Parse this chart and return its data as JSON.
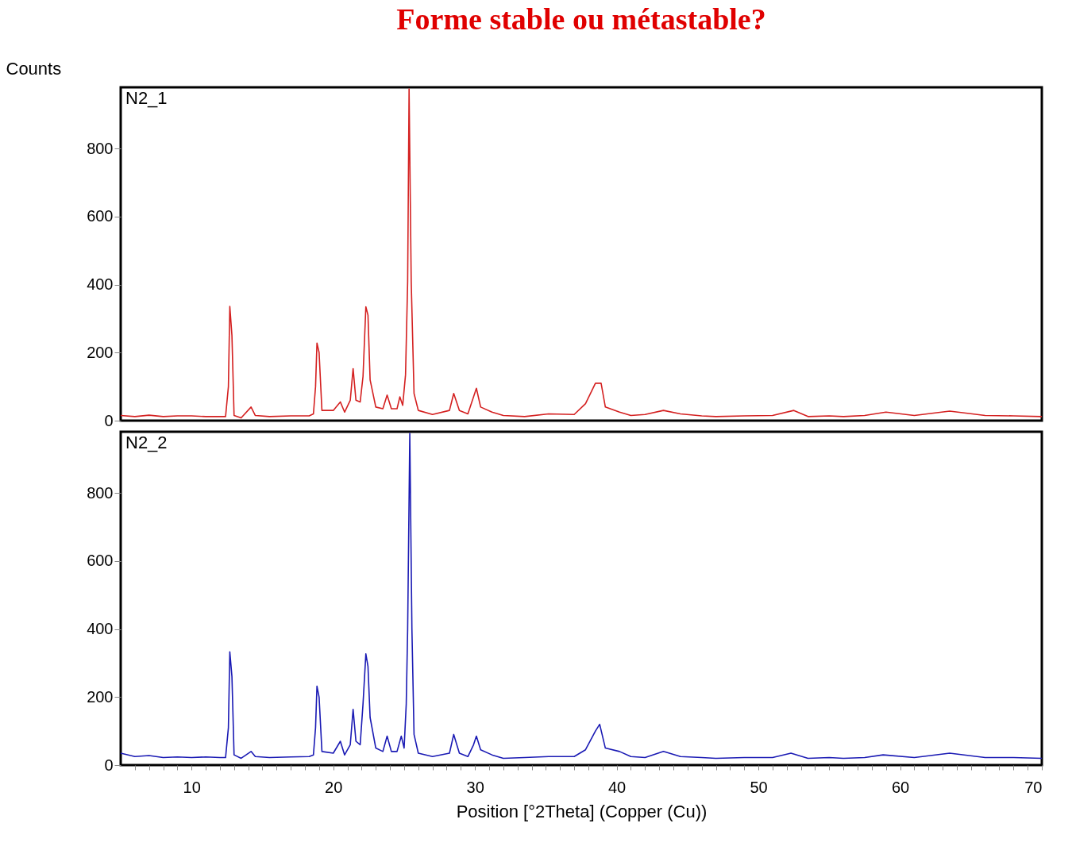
{
  "chart_data": [
    {
      "type": "line",
      "title": "Forme stable ou métastable?",
      "ylabel": "Counts",
      "xlim": [
        5,
        70
      ],
      "ylim": [
        0,
        980
      ],
      "yticks": [
        0,
        200,
        400,
        600,
        800
      ],
      "tick_labels": "y",
      "grid": false,
      "series": [
        {
          "name": "N2_1",
          "color": "#d42020",
          "x": [
            5,
            6,
            7,
            8,
            9,
            10,
            11,
            12,
            12.4,
            12.6,
            12.7,
            12.85,
            13.0,
            13.5,
            14.2,
            14.5,
            15.5,
            17,
            18.3,
            18.6,
            18.75,
            18.85,
            19.0,
            19.2,
            20.0,
            20.5,
            20.8,
            21.2,
            21.4,
            21.6,
            21.9,
            22.1,
            22.3,
            22.45,
            22.6,
            23.0,
            23.5,
            23.8,
            24.1,
            24.5,
            24.7,
            24.9,
            25.1,
            25.25,
            25.35,
            25.5,
            25.7,
            26.0,
            27,
            28.2,
            28.5,
            28.9,
            29.5,
            29.9,
            30.1,
            30.4,
            31.2,
            32,
            33.5,
            35.2,
            37,
            37.8,
            38.5,
            38.9,
            39.2,
            40.2,
            41,
            42,
            43.3,
            44.5,
            46,
            47,
            49,
            51,
            52.5,
            53.5,
            55,
            56,
            57.5,
            59,
            61,
            63.5,
            66,
            68,
            70
          ],
          "values": [
            15,
            12,
            16,
            12,
            14,
            14,
            12,
            12,
            12,
            100,
            336,
            250,
            15,
            8,
            40,
            15,
            12,
            14,
            14,
            20,
            100,
            228,
            200,
            30,
            30,
            55,
            25,
            60,
            153,
            60,
            55,
            130,
            335,
            310,
            120,
            40,
            35,
            75,
            35,
            35,
            70,
            45,
            135,
            410,
            975,
            410,
            80,
            30,
            18,
            30,
            80,
            30,
            20,
            70,
            95,
            40,
            25,
            15,
            12,
            20,
            18,
            50,
            110,
            110,
            40,
            25,
            15,
            18,
            30,
            20,
            14,
            12,
            14,
            15,
            30,
            12,
            14,
            12,
            15,
            25,
            15,
            28,
            15,
            14,
            12
          ]
        }
      ]
    },
    {
      "type": "line",
      "xlabel": "Position [°2Theta] (Copper (Cu))",
      "xlim": [
        5,
        70
      ],
      "ylim": [
        0,
        980
      ],
      "yticks": [
        0,
        200,
        400,
        600,
        800
      ],
      "grid": false,
      "xticks": [
        {
          "value": 6,
          "label": null
        },
        {
          "value": 7,
          "label": null
        },
        {
          "value": 8,
          "label": null
        },
        {
          "value": 9,
          "label": null
        },
        10,
        {
          "value": 11,
          "label": null
        },
        {
          "value": 12,
          "label": null
        },
        {
          "value": 13,
          "label": null
        },
        {
          "value": 14,
          "label": null
        },
        {
          "value": 15,
          "label": null
        },
        {
          "value": 16,
          "label": null
        },
        {
          "value": 17,
          "label": null
        },
        {
          "value": 18,
          "label": null
        },
        {
          "value": 19,
          "label": null
        },
        20,
        {
          "value": 21,
          "label": null
        },
        {
          "value": 22,
          "label": null
        },
        {
          "value": 23,
          "label": null
        },
        {
          "value": 24,
          "label": null
        },
        {
          "value": 25,
          "label": null
        },
        {
          "value": 26,
          "label": null
        },
        {
          "value": 27,
          "label": null
        },
        {
          "value": 28,
          "label": null
        },
        {
          "value": 29,
          "label": null
        },
        30,
        {
          "value": 31,
          "label": null
        },
        {
          "value": 32,
          "label": null
        },
        {
          "value": 33,
          "label": null
        },
        {
          "value": 34,
          "label": null
        },
        {
          "value": 35,
          "label": null
        },
        {
          "value": 36,
          "label": null
        },
        {
          "value": 37,
          "label": null
        },
        {
          "value": 38,
          "label": null
        },
        {
          "value": 39,
          "label": null
        },
        40,
        {
          "value": 41,
          "label": null
        },
        {
          "value": 42,
          "label": null
        },
        {
          "value": 43,
          "label": null
        },
        {
          "value": 44,
          "label": null
        },
        {
          "value": 45,
          "label": null
        },
        {
          "value": 46,
          "label": null
        },
        {
          "value": 47,
          "label": null
        },
        {
          "value": 48,
          "label": null
        },
        {
          "value": 49,
          "label": null
        },
        50,
        {
          "value": 51,
          "label": null
        },
        {
          "value": 52,
          "label": null
        },
        {
          "value": 53,
          "label": null
        },
        {
          "value": 54,
          "label": null
        },
        {
          "value": 55,
          "label": null
        },
        {
          "value": 56,
          "label": null
        },
        {
          "value": 57,
          "label": null
        },
        {
          "value": 58,
          "label": null
        },
        {
          "value": 59,
          "label": null
        },
        60,
        {
          "value": 61,
          "label": null
        },
        {
          "value": 62,
          "label": null
        },
        {
          "value": 63,
          "label": null
        },
        {
          "value": 64,
          "label": null
        },
        {
          "value": 65,
          "label": null
        },
        {
          "value": 66,
          "label": null
        },
        {
          "value": 67,
          "label": null
        },
        {
          "value": 68,
          "label": null
        },
        {
          "value": 69,
          "label": null
        },
        70
      ],
      "series": [
        {
          "name": "N2_2",
          "color": "#1a1ab4",
          "x": [
            5,
            6,
            7,
            8,
            9,
            10,
            11,
            12,
            12.4,
            12.6,
            12.7,
            12.85,
            13.0,
            13.5,
            14.2,
            14.5,
            15.5,
            17,
            18.3,
            18.6,
            18.75,
            18.85,
            19.0,
            19.2,
            20.0,
            20.5,
            20.8,
            21.2,
            21.4,
            21.6,
            21.9,
            22.1,
            22.3,
            22.45,
            22.6,
            23.0,
            23.5,
            23.8,
            24.1,
            24.5,
            24.8,
            25.0,
            25.15,
            25.25,
            25.4,
            25.55,
            25.7,
            26.0,
            27,
            28.2,
            28.5,
            28.9,
            29.5,
            29.9,
            30.1,
            30.4,
            31.2,
            32,
            33.5,
            35.2,
            37,
            37.8,
            38.5,
            38.8,
            39.2,
            40.2,
            41,
            42,
            43.3,
            44.5,
            46,
            47,
            49,
            51,
            52.3,
            53.5,
            55,
            56,
            57.5,
            58.8,
            61,
            63.5,
            66,
            68,
            70
          ],
          "values": [
            35,
            25,
            28,
            22,
            24,
            22,
            24,
            22,
            22,
            110,
            333,
            260,
            30,
            20,
            40,
            25,
            22,
            24,
            25,
            30,
            110,
            232,
            200,
            40,
            35,
            70,
            30,
            60,
            164,
            70,
            60,
            180,
            327,
            290,
            140,
            50,
            40,
            85,
            40,
            40,
            85,
            50,
            180,
            400,
            975,
            400,
            90,
            35,
            25,
            35,
            90,
            35,
            25,
            60,
            85,
            45,
            30,
            20,
            22,
            25,
            25,
            45,
            100,
            120,
            50,
            40,
            25,
            22,
            40,
            25,
            22,
            20,
            22,
            22,
            35,
            20,
            22,
            20,
            22,
            30,
            22,
            35,
            22,
            22,
            20
          ]
        }
      ]
    }
  ]
}
